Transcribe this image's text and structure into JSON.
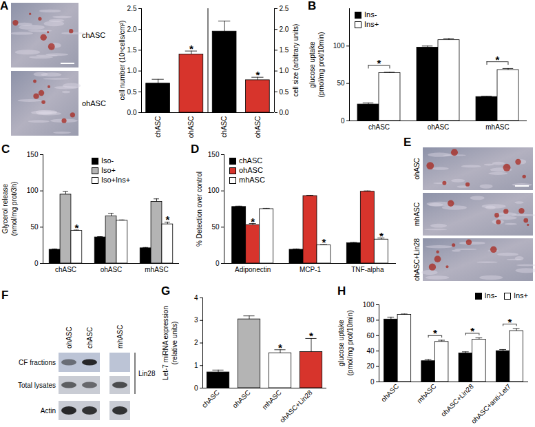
{
  "chart_data": [
    {
      "type": "bar",
      "categories": [
        "chASC",
        "ohASC",
        "chASC",
        "ohASC"
      ],
      "ylabel": "cell number (10⁵cells/cm²)",
      "y2label": "cell size (arbitrary units)",
      "ylim": [
        0,
        2.5
      ],
      "yticks": [
        {
          "value": 0,
          "label": "0.0"
        },
        {
          "value": 0.5,
          "label": "0.5"
        },
        {
          "value": 1,
          "label": "1.0"
        },
        {
          "value": 1.5,
          "label": "1.5"
        },
        {
          "value": 2,
          "label": "2.0"
        },
        {
          "value": 2.5,
          "label": "2.5"
        }
      ],
      "y2lim": [
        0,
        2.5
      ],
      "y2ticks": [
        {
          "value": 0,
          "label": "0.0"
        },
        {
          "value": 0.5,
          "label": "0.5"
        },
        {
          "value": 1,
          "label": "1.0"
        },
        {
          "value": 1.5,
          "label": "1.5"
        },
        {
          "value": 2,
          "label": "2.0"
        },
        {
          "value": 2.5,
          "label": "2.5"
        }
      ],
      "series": [
        {
          "values": [
            0.7,
            1.4,
            null,
            null
          ],
          "errors": [
            0.1,
            0.08,
            null,
            null
          ],
          "colors": [
            "#000000",
            "#d7342c",
            null,
            null
          ],
          "significance": [
            null,
            "*",
            null,
            null
          ]
        },
        {
          "axis": "y2",
          "values": [
            null,
            null,
            1.95,
            0.78
          ],
          "errors": [
            null,
            null,
            0.25,
            0.07
          ],
          "colors": [
            null,
            null,
            "#000000",
            "#d7342c"
          ],
          "significance": [
            null,
            null,
            null,
            "*"
          ]
        }
      ]
    },
    {
      "type": "bar",
      "title": "B",
      "categories": [
        "chASC",
        "ohASC",
        "mhASC"
      ],
      "ylabel": "glucose uptake\n(pmol/mg prot/10min)",
      "ylim": [
        0,
        150
      ],
      "yticks": [
        0,
        50,
        100
      ],
      "legend": "top-left",
      "series": [
        {
          "name": "Ins-",
          "color": "#000000",
          "values": [
            22,
            98,
            32
          ],
          "errors": [
            2,
            2,
            1
          ]
        },
        {
          "name": "Ins+",
          "color": "#ffffff",
          "values": [
            64,
            108,
            68
          ],
          "errors": [
            1,
            2,
            2
          ]
        }
      ],
      "brackets": [
        {
          "category": "chASC",
          "text": "*"
        },
        {
          "category": "mhASC",
          "text": "*"
        }
      ]
    },
    {
      "type": "bar",
      "title": "C",
      "categories": [
        "chASC",
        "ohASC",
        "mhASC"
      ],
      "ylabel": "Glycerol release\n(nmol/mg prot/3h)",
      "ylim": [
        0,
        150
      ],
      "yticks": [
        0,
        50,
        100,
        150
      ],
      "legend": "top",
      "series": [
        {
          "name": "Iso-",
          "color": "#000000",
          "values": [
            19,
            36,
            21
          ],
          "errors": [
            1,
            1,
            1
          ]
        },
        {
          "name": "Iso+",
          "color": "#b4b4b4",
          "values": [
            95,
            65,
            85
          ],
          "errors": [
            4,
            4,
            4
          ]
        },
        {
          "name": "Iso+Ins+",
          "color": "#ffffff",
          "values": [
            45,
            59,
            54
          ],
          "errors": [
            1,
            1,
            3
          ],
          "significance": [
            "*",
            null,
            "*"
          ]
        }
      ]
    },
    {
      "type": "bar",
      "title": "D",
      "categories": [
        "Adiponectin",
        "MCP-1",
        "TNF-alpha"
      ],
      "ylabel": "% Detection over control",
      "ylim": [
        0,
        150
      ],
      "yticks": [
        0,
        50,
        100,
        150
      ],
      "legend": "top-left",
      "series": [
        {
          "name": "chASC",
          "color": "#000000",
          "values": [
            78,
            19,
            28
          ],
          "errors": [
            1,
            1,
            1
          ]
        },
        {
          "name": "ohASC",
          "color": "#d7342c",
          "values": [
            53,
            93,
            99
          ],
          "errors": [
            2,
            1,
            1
          ],
          "significance": [
            "*",
            null,
            null
          ]
        },
        {
          "name": "mhASC",
          "color": "#ffffff",
          "values": [
            75,
            25,
            33
          ],
          "errors": [
            1,
            1,
            2
          ],
          "significance": [
            null,
            "*",
            "*"
          ]
        }
      ]
    },
    {
      "type": "bar",
      "title": "G",
      "categories": [
        "chASC",
        "ohASC",
        "mhASC",
        "ohASC+Lin28"
      ],
      "ylabel": "Let-7 miRNA expression\n(relative units)",
      "ylim": [
        0,
        4
      ],
      "yticks": [
        0,
        1,
        2,
        3,
        4
      ],
      "series": [
        {
          "values": [
            0.7,
            3.05,
            1.55,
            1.6
          ],
          "errors": [
            0.1,
            0.15,
            0.15,
            0.6
          ],
          "colors": [
            "#000000",
            "#b4b4b4",
            "#ffffff",
            "#d7342c"
          ],
          "significance": [
            null,
            null,
            "*",
            "*"
          ]
        }
      ]
    },
    {
      "type": "bar",
      "title": "H",
      "categories": [
        "ohASC",
        "mhASC",
        "ohASC+Lin28",
        "ohASC+anti-Let7"
      ],
      "ylabel": "glucose uptake\n(pmol/mg prot/10min)",
      "ylim": [
        0,
        100
      ],
      "yticks": [
        0,
        20,
        40,
        60,
        80,
        100
      ],
      "legend": "top-right",
      "series": [
        {
          "name": "Ins-",
          "color": "#000000",
          "values": [
            81,
            27,
            37,
            40
          ],
          "errors": [
            3,
            2,
            2,
            2
          ]
        },
        {
          "name": "Ins+",
          "color": "#ffffff",
          "values": [
            87,
            52,
            55,
            66
          ],
          "errors": [
            1,
            2,
            2,
            3
          ]
        }
      ],
      "brackets": [
        {
          "category": "mhASC",
          "text": "*"
        },
        {
          "category": "ohASC+Lin28",
          "text": "*"
        },
        {
          "category": "ohASC+anti-Let7",
          "text": "*"
        }
      ]
    }
  ],
  "micrographs": [
    {
      "title": "A",
      "labels": [
        "chASC",
        "ohASC"
      ]
    },
    {
      "title": "E",
      "labels": [
        "ohASC",
        "mhASC",
        "ohASC+Lin28"
      ]
    }
  ],
  "blot": {
    "title": "F",
    "lanes": [
      "ohASC",
      "chASC",
      "mhASC"
    ],
    "rows": [
      "CF fractions",
      "Total lysates",
      "Actin"
    ],
    "groups": [
      {
        "label": "Lin28",
        "rows": [
          "CF fractions",
          "Total lysates"
        ]
      }
    ],
    "band_intensity": [
      [
        0.5,
        0.9,
        0
      ],
      [
        0.6,
        0.55,
        0.7
      ],
      [
        0.9,
        0.85,
        0.85
      ]
    ]
  }
}
